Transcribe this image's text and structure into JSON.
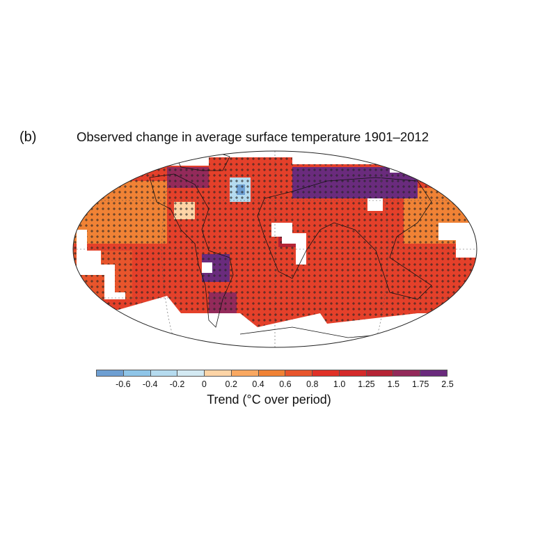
{
  "panel_label": "(b)",
  "title": "Observed change in average surface temperature 1901–2012",
  "colorbar": {
    "label": "Trend (°C over period)",
    "tick_labels": [
      "-0.6",
      "-0.4",
      "-0.2",
      "0",
      "0.2",
      "0.4",
      "0.6",
      "0.8",
      "1.0",
      "1.25",
      "1.5",
      "1.75",
      "2.5"
    ],
    "colors": [
      "#6e9fd2",
      "#8fc5e8",
      "#b5dbef",
      "#d3e9f2",
      "#fdd4a6",
      "#f9a861",
      "#f08235",
      "#e8552c",
      "#e03127",
      "#d42a2a",
      "#b52435",
      "#932a5a",
      "#6a2b7d"
    ]
  },
  "chart_data": {
    "type": "heatmap",
    "title": "Observed change in average surface temperature 1901–2012",
    "colorbar_label": "Trend (°C over period)",
    "bins": [
      -0.8,
      -0.6,
      -0.4,
      -0.2,
      0,
      0.2,
      0.4,
      0.6,
      0.8,
      1.0,
      1.25,
      1.5,
      1.75,
      2.5
    ],
    "missing_data_color": "#ffffff",
    "significance_marker": "+",
    "projection": "Robinson"
  }
}
